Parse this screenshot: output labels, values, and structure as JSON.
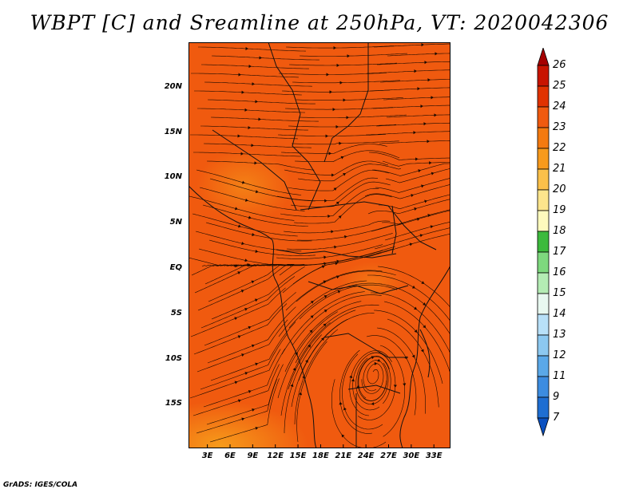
{
  "title": "WBPT [C] and Sreamline at 250hPa, VT: 2020042306",
  "footer": "GrADS: IGES/COLA",
  "map": {
    "lat_range": [
      -20,
      25
    ],
    "lon_range": [
      0,
      35
    ],
    "lat_labels": [
      {
        "lat": 20,
        "text": "20N"
      },
      {
        "lat": 15,
        "text": "15N"
      },
      {
        "lat": 10,
        "text": "10N"
      },
      {
        "lat": 5,
        "text": "5N"
      },
      {
        "lat": 0,
        "text": "EQ"
      },
      {
        "lat": -5,
        "text": "5S"
      },
      {
        "lat": -10,
        "text": "10S"
      },
      {
        "lat": -15,
        "text": "15S"
      }
    ],
    "lon_labels": [
      {
        "lon": 3,
        "text": "3E"
      },
      {
        "lon": 6,
        "text": "6E"
      },
      {
        "lon": 9,
        "text": "9E"
      },
      {
        "lon": 12,
        "text": "12E"
      },
      {
        "lon": 15,
        "text": "15E"
      },
      {
        "lon": 18,
        "text": "18E"
      },
      {
        "lon": 21,
        "text": "21E"
      },
      {
        "lon": 24,
        "text": "24E"
      },
      {
        "lon": 27,
        "text": "27E"
      },
      {
        "lon": 30,
        "text": "30E"
      },
      {
        "lon": 33,
        "text": "33E"
      }
    ],
    "field_color": "#f05a0f",
    "warm_patch_color": "#f7a21c",
    "streamline_color": "#1a0a00",
    "boundary_color": "#111111"
  },
  "colorbar": {
    "labels": [
      "26",
      "25",
      "24",
      "23",
      "22",
      "21",
      "20",
      "19",
      "18",
      "17",
      "16",
      "15",
      "14",
      "13",
      "12",
      "11",
      "9",
      "7"
    ],
    "colors": [
      "#a50000",
      "#c81400",
      "#e03200",
      "#f05a0f",
      "#f47a10",
      "#f79a1c",
      "#fbc04a",
      "#fde58c",
      "#fefabd",
      "#3dba3d",
      "#7ed87e",
      "#b4ecb4",
      "#e8f8f0",
      "#b8e0f8",
      "#8cc8f0",
      "#5aa8e8",
      "#3c8ce0",
      "#1e6ed2",
      "#0a50c0"
    ]
  }
}
